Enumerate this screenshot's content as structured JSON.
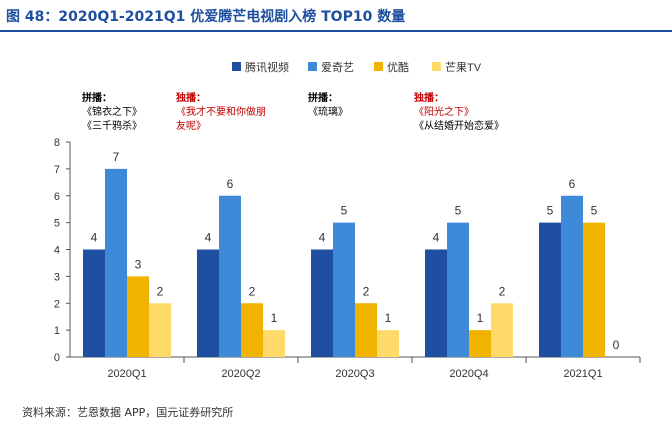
{
  "title": "图 48：2020Q1-2021Q1 优爱腾芒电视剧入榜 TOP10 数量",
  "source": "资料来源：艺恩数据 APP，国元证券研究所",
  "annotations": [
    {
      "head": "拼播：",
      "lines": [
        "《锦衣之下》",
        "《三千鸦杀》"
      ],
      "color": "black"
    },
    {
      "head": "独播：",
      "lines": [
        "《我才不要和你做朋",
        "友呢》"
      ],
      "color": "red"
    },
    {
      "head": "拼播：",
      "lines": [
        "《琉璃》"
      ],
      "color": "black"
    },
    {
      "head": "独播：",
      "lines": [
        "《阳光之下》",
        "《从结婚开始恋爱》"
      ],
      "color": "red",
      "line_colors": [
        "red",
        "black"
      ]
    }
  ],
  "chart_data": {
    "type": "bar",
    "categories": [
      "2020Q1",
      "2020Q2",
      "2020Q3",
      "2020Q4",
      "2021Q1"
    ],
    "series": [
      {
        "name": "腾讯视频",
        "color": "#1f4fa0",
        "values": [
          4,
          4,
          4,
          4,
          5
        ]
      },
      {
        "name": "爱奇艺",
        "color": "#3f8ad8",
        "values": [
          7,
          6,
          5,
          5,
          6
        ]
      },
      {
        "name": "优酷",
        "color": "#f0b400",
        "values": [
          3,
          2,
          2,
          1,
          5
        ]
      },
      {
        "name": "芒果TV",
        "color": "#ffd96a",
        "values": [
          2,
          1,
          1,
          2,
          0
        ]
      }
    ],
    "ylim": [
      0,
      8
    ],
    "yticks": [
      0,
      1,
      2,
      3,
      4,
      5,
      6,
      7,
      8
    ],
    "legend_position": "top",
    "grid": false
  }
}
